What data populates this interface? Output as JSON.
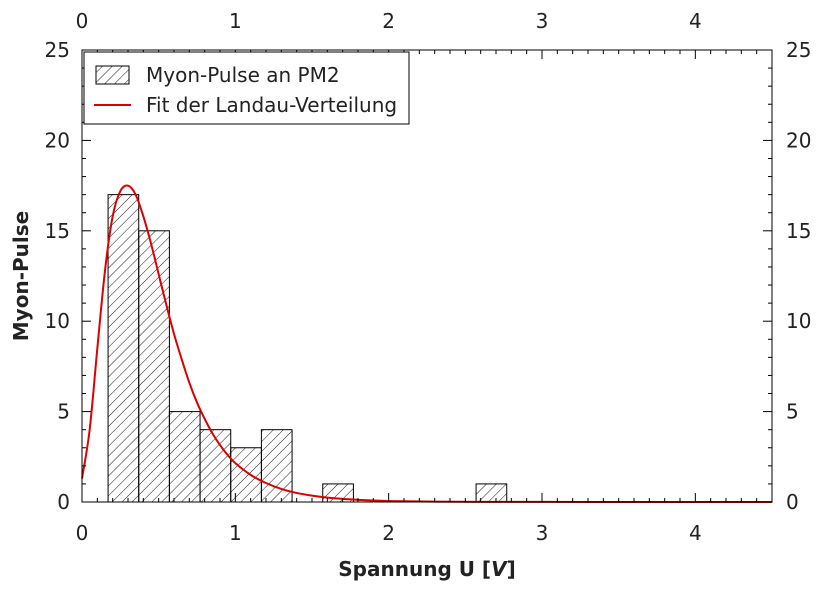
{
  "chart_data": {
    "type": "bar",
    "xlabel": "Spannung U [",
    "xlabel_unit": "V",
    "xlabel_end": "]",
    "ylabel": "Myon-Pulse",
    "xlim": [
      0,
      4.5
    ],
    "ylim": [
      0,
      25
    ],
    "x_ticks": [
      "0",
      "1",
      "2",
      "3",
      "4"
    ],
    "y_ticks": [
      "0",
      "5",
      "10",
      "15",
      "20",
      "25"
    ],
    "grid": false,
    "legend_position": "top-left",
    "histogram": {
      "name": "Myon-Pulse an PM2",
      "bins": [
        {
          "x0": 0.17,
          "x1": 0.37,
          "value": 17
        },
        {
          "x0": 0.37,
          "x1": 0.57,
          "value": 15
        },
        {
          "x0": 0.57,
          "x1": 0.77,
          "value": 5
        },
        {
          "x0": 0.77,
          "x1": 0.97,
          "value": 4
        },
        {
          "x0": 0.97,
          "x1": 1.17,
          "value": 3
        },
        {
          "x0": 1.17,
          "x1": 1.37,
          "value": 4
        },
        {
          "x0": 1.57,
          "x1": 1.77,
          "value": 1
        },
        {
          "x0": 2.57,
          "x1": 2.77,
          "value": 1
        }
      ],
      "color": "#000000"
    },
    "fit": {
      "name": "Fit der Landau-Verteilung",
      "color": "#dd0000",
      "x": [
        0.0,
        0.05,
        0.1,
        0.15,
        0.2,
        0.25,
        0.3,
        0.35,
        0.4,
        0.45,
        0.5,
        0.55,
        0.6,
        0.65,
        0.7,
        0.75,
        0.8,
        0.85,
        0.9,
        0.95,
        1.0,
        1.1,
        1.2,
        1.3,
        1.4,
        1.5,
        1.6,
        1.7,
        1.8,
        1.9,
        2.0,
        2.1,
        2.3,
        2.6,
        3.0,
        3.5,
        4.0,
        4.5
      ],
      "y": [
        1.3,
        4.0,
        8.5,
        12.8,
        15.8,
        17.2,
        17.5,
        17.0,
        15.8,
        14.3,
        12.6,
        10.9,
        9.3,
        7.9,
        6.6,
        5.5,
        4.6,
        3.8,
        3.15,
        2.6,
        2.15,
        1.5,
        1.05,
        0.72,
        0.5,
        0.35,
        0.24,
        0.17,
        0.12,
        0.08,
        0.055,
        0.04,
        0.02,
        0.01,
        0.004,
        0.001,
        0.0,
        0.0
      ]
    }
  }
}
